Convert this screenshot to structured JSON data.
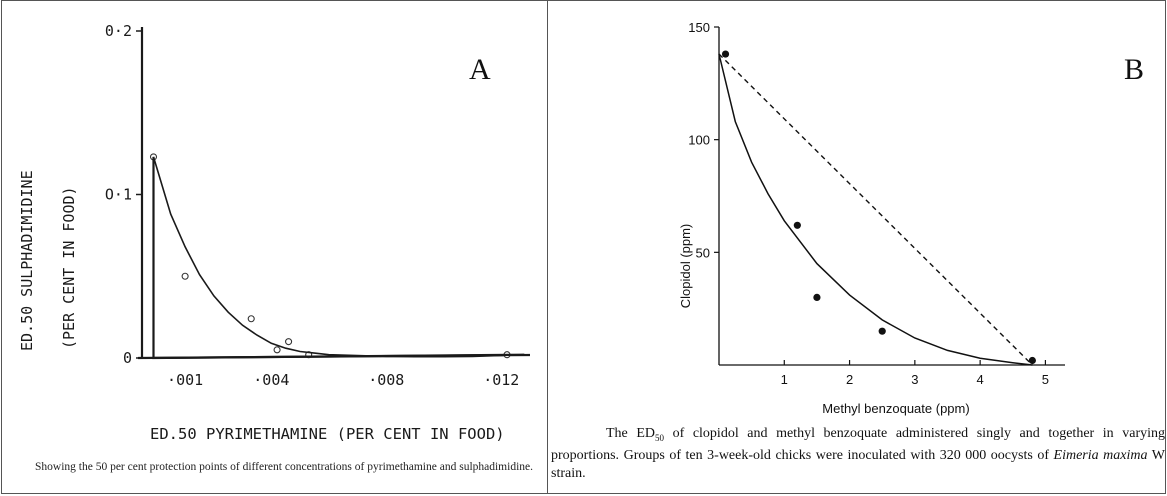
{
  "chart_data": [
    {
      "type": "line",
      "panel_label": "A",
      "xlabel": "ED.50 PYRIMETHAMINE (PER CENT IN FOOD)",
      "ylabel_line1": "ED.50   SULPHADIMIDINE",
      "ylabel_line2": "(PER   CENT   IN   FOOD)",
      "x_ticks": [
        {
          "value": 0.001,
          "label": "·001"
        },
        {
          "value": 0.004,
          "label": "·004"
        },
        {
          "value": 0.008,
          "label": "·008"
        },
        {
          "value": 0.012,
          "label": "·012"
        }
      ],
      "y_ticks": [
        {
          "value": 0,
          "label": "0"
        },
        {
          "value": 0.1,
          "label": "O·1"
        },
        {
          "value": 0.2,
          "label": "0·2"
        }
      ],
      "xlim": [
        -0.0005,
        0.013
      ],
      "ylim": [
        0,
        0.2
      ],
      "series": [
        {
          "kind": "points",
          "marker": "open-circle",
          "x": [
            -0.0001,
            0.001,
            0.0033,
            0.0042,
            0.0046,
            0.0053,
            0.0122
          ],
          "y": [
            0.123,
            0.05,
            0.024,
            0.005,
            0.01,
            0.002,
            0.002
          ]
        },
        {
          "kind": "fitted-curve",
          "x": [
            -0.0001,
            0.0005,
            0.001,
            0.0015,
            0.002,
            0.0025,
            0.003,
            0.0035,
            0.004,
            0.0045,
            0.005,
            0.0055,
            0.006,
            0.007,
            0.008,
            0.009,
            0.01,
            0.011,
            0.012,
            0.0128
          ],
          "y": [
            0.123,
            0.088,
            0.068,
            0.051,
            0.038,
            0.028,
            0.02,
            0.014,
            0.009,
            0.006,
            0.004,
            0.003,
            0.002,
            0.0015,
            0.001,
            0.0008,
            0.0008,
            0.001,
            0.0015,
            0.002
          ]
        },
        {
          "kind": "straight-line",
          "x": [
            -0.0001,
            -0.0001,
            0.0128
          ],
          "y": [
            0.123,
            0,
            0.002
          ]
        }
      ],
      "caption": "Showing the 50 per cent protection points of different concentrations of pyrimethamine and sulphadimidine."
    },
    {
      "type": "line",
      "panel_label": "B",
      "xlabel": "Methyl benzoquate (ppm)",
      "ylabel": "Clopidol (ppm)",
      "x_ticks": [
        1,
        2,
        3,
        4,
        5
      ],
      "y_ticks": [
        50,
        100,
        150
      ],
      "xlim": [
        0,
        5.3
      ],
      "ylim": [
        0,
        150
      ],
      "series": [
        {
          "kind": "points",
          "marker": "filled-circle",
          "x": [
            0.1,
            1.2,
            1.5,
            2.5,
            4.8
          ],
          "y": [
            138,
            62,
            30,
            15,
            2
          ]
        },
        {
          "kind": "fitted-curve",
          "x": [
            0,
            0.25,
            0.5,
            0.75,
            1,
            1.5,
            2,
            2.5,
            3,
            3.5,
            4,
            4.5,
            4.8
          ],
          "y": [
            138,
            108,
            90,
            76,
            64,
            45,
            31,
            20,
            12,
            6.5,
            3,
            1,
            0
          ]
        },
        {
          "kind": "dashed-line",
          "x": [
            0,
            4.8
          ],
          "y": [
            138,
            0
          ]
        }
      ],
      "caption_lead": "The ED",
      "caption_sub": "50",
      "caption_rest": " of clopidol and methyl benzoquate administered singly and together in varying proportions. Groups of ten 3-week-old chicks were inoculated with 320 000 oocysts of ",
      "caption_italic": "Eimeria maxima",
      "caption_end": " W strain."
    }
  ]
}
